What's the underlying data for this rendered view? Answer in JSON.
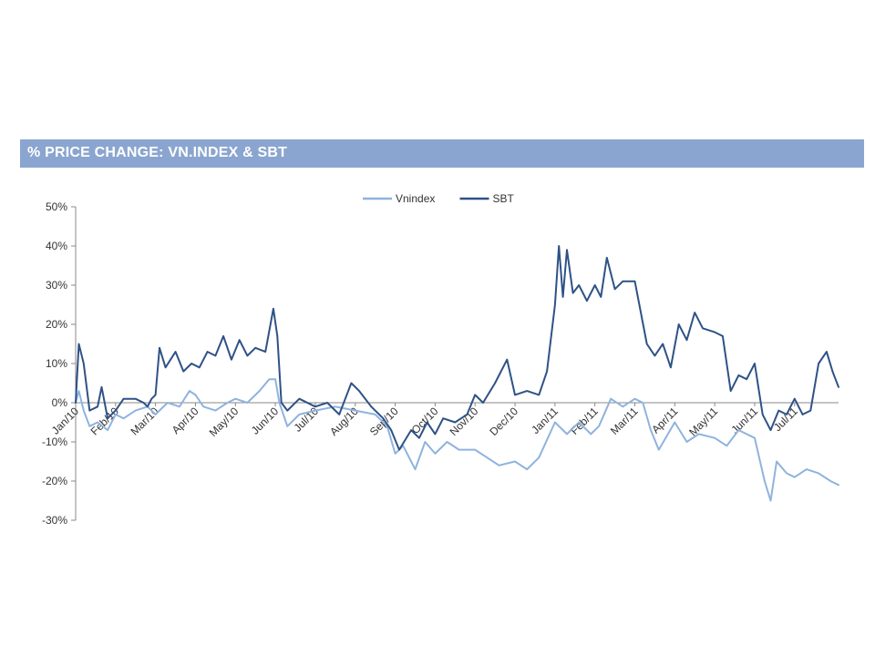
{
  "chart_data": {
    "type": "line",
    "title": "% PRICE CHANGE: VN.INDEX  & SBT",
    "xlabel": "",
    "ylabel": "",
    "ylim": [
      -30,
      50
    ],
    "y_ticks": [
      -30,
      -20,
      -10,
      0,
      10,
      20,
      30,
      40,
      50
    ],
    "y_tick_labels": [
      "-30%",
      "-20%",
      "-10%",
      "0%",
      "10%",
      "20%",
      "30%",
      "40%",
      "50%"
    ],
    "x_tick_labels": [
      "Jan/10",
      "Feb/10",
      "Mar/10",
      "Apr/10",
      "May/10",
      "Jun/10",
      "Jul/10",
      "Aug/10",
      "Sep/10",
      "Oct/10",
      "Nov/10",
      "Dec/10",
      "Jan/11",
      "Feb/11",
      "Mar/11",
      "Apr/11",
      "May/11",
      "Jun/11",
      "Jul/11"
    ],
    "x_range": [
      0,
      19.1
    ],
    "grid": false,
    "legend_position": "top-center",
    "series": [
      {
        "name": "Vnindex",
        "color": "#8fb3de",
        "points": [
          [
            0.0,
            0
          ],
          [
            0.08,
            3
          ],
          [
            0.2,
            -2
          ],
          [
            0.35,
            -6
          ],
          [
            0.55,
            -5
          ],
          [
            0.8,
            -7
          ],
          [
            1.0,
            -3
          ],
          [
            1.2,
            -4
          ],
          [
            1.5,
            -2
          ],
          [
            1.8,
            -1
          ],
          [
            2.0,
            -3
          ],
          [
            2.3,
            0
          ],
          [
            2.6,
            -1
          ],
          [
            2.85,
            3
          ],
          [
            3.0,
            2
          ],
          [
            3.2,
            -1
          ],
          [
            3.5,
            -2
          ],
          [
            3.8,
            0
          ],
          [
            4.0,
            1
          ],
          [
            4.3,
            0
          ],
          [
            4.6,
            3
          ],
          [
            4.85,
            6
          ],
          [
            5.0,
            6
          ],
          [
            5.1,
            0
          ],
          [
            5.3,
            -6
          ],
          [
            5.6,
            -3
          ],
          [
            6.0,
            -2
          ],
          [
            6.5,
            -1
          ],
          [
            7.0,
            -2
          ],
          [
            7.5,
            -3
          ],
          [
            7.8,
            -6
          ],
          [
            8.0,
            -13
          ],
          [
            8.2,
            -11
          ],
          [
            8.5,
            -17
          ],
          [
            8.75,
            -10
          ],
          [
            9.0,
            -13
          ],
          [
            9.3,
            -10
          ],
          [
            9.6,
            -12
          ],
          [
            10.0,
            -12
          ],
          [
            10.3,
            -14
          ],
          [
            10.6,
            -16
          ],
          [
            11.0,
            -15
          ],
          [
            11.3,
            -17
          ],
          [
            11.6,
            -14
          ],
          [
            12.0,
            -5
          ],
          [
            12.3,
            -8
          ],
          [
            12.6,
            -5
          ],
          [
            12.9,
            -8
          ],
          [
            13.1,
            -6
          ],
          [
            13.4,
            1
          ],
          [
            13.7,
            -1
          ],
          [
            14.0,
            1
          ],
          [
            14.2,
            0
          ],
          [
            14.4,
            -7
          ],
          [
            14.6,
            -12
          ],
          [
            15.0,
            -5
          ],
          [
            15.3,
            -10
          ],
          [
            15.6,
            -8
          ],
          [
            16.0,
            -9
          ],
          [
            16.3,
            -11
          ],
          [
            16.6,
            -7
          ],
          [
            17.0,
            -9
          ],
          [
            17.25,
            -20
          ],
          [
            17.4,
            -25
          ],
          [
            17.55,
            -15
          ],
          [
            17.8,
            -18
          ],
          [
            18.0,
            -19
          ],
          [
            18.3,
            -17
          ],
          [
            18.6,
            -18
          ],
          [
            18.9,
            -20
          ],
          [
            19.1,
            -21
          ]
        ]
      },
      {
        "name": "SBT",
        "color": "#2e5286",
        "points": [
          [
            0.0,
            0
          ],
          [
            0.08,
            15
          ],
          [
            0.2,
            10
          ],
          [
            0.35,
            -2
          ],
          [
            0.55,
            -1
          ],
          [
            0.65,
            4
          ],
          [
            0.8,
            -4
          ],
          [
            1.0,
            -2
          ],
          [
            1.2,
            1
          ],
          [
            1.5,
            1
          ],
          [
            1.7,
            0
          ],
          [
            1.8,
            -1
          ],
          [
            1.9,
            1
          ],
          [
            2.0,
            2
          ],
          [
            2.1,
            14
          ],
          [
            2.25,
            9
          ],
          [
            2.5,
            13
          ],
          [
            2.7,
            8
          ],
          [
            2.9,
            10
          ],
          [
            3.1,
            9
          ],
          [
            3.3,
            13
          ],
          [
            3.5,
            12
          ],
          [
            3.7,
            17
          ],
          [
            3.9,
            11
          ],
          [
            4.1,
            16
          ],
          [
            4.3,
            12
          ],
          [
            4.5,
            14
          ],
          [
            4.75,
            13
          ],
          [
            4.95,
            24
          ],
          [
            5.05,
            17
          ],
          [
            5.15,
            0
          ],
          [
            5.3,
            -2
          ],
          [
            5.6,
            1
          ],
          [
            6.0,
            -1
          ],
          [
            6.3,
            0
          ],
          [
            6.6,
            -3
          ],
          [
            6.9,
            5
          ],
          [
            7.1,
            3
          ],
          [
            7.4,
            -1
          ],
          [
            7.7,
            -4
          ],
          [
            7.9,
            -7
          ],
          [
            8.1,
            -12
          ],
          [
            8.4,
            -7
          ],
          [
            8.6,
            -9
          ],
          [
            8.8,
            -5
          ],
          [
            9.0,
            -8
          ],
          [
            9.2,
            -4
          ],
          [
            9.5,
            -5
          ],
          [
            9.8,
            -3
          ],
          [
            10.0,
            2
          ],
          [
            10.2,
            0
          ],
          [
            10.5,
            5
          ],
          [
            10.8,
            11
          ],
          [
            11.0,
            2
          ],
          [
            11.3,
            3
          ],
          [
            11.6,
            2
          ],
          [
            11.8,
            8
          ],
          [
            12.0,
            25
          ],
          [
            12.1,
            40
          ],
          [
            12.2,
            27
          ],
          [
            12.3,
            39
          ],
          [
            12.45,
            28
          ],
          [
            12.6,
            30
          ],
          [
            12.8,
            26
          ],
          [
            13.0,
            30
          ],
          [
            13.15,
            27
          ],
          [
            13.3,
            37
          ],
          [
            13.5,
            29
          ],
          [
            13.7,
            31
          ],
          [
            14.0,
            31
          ],
          [
            14.3,
            15
          ],
          [
            14.5,
            12
          ],
          [
            14.7,
            15
          ],
          [
            14.9,
            9
          ],
          [
            15.1,
            20
          ],
          [
            15.3,
            16
          ],
          [
            15.5,
            23
          ],
          [
            15.7,
            19
          ],
          [
            16.0,
            18
          ],
          [
            16.2,
            17
          ],
          [
            16.4,
            3
          ],
          [
            16.6,
            7
          ],
          [
            16.8,
            6
          ],
          [
            17.0,
            10
          ],
          [
            17.2,
            -3
          ],
          [
            17.4,
            -7
          ],
          [
            17.6,
            -2
          ],
          [
            17.8,
            -3
          ],
          [
            18.0,
            1
          ],
          [
            18.2,
            -3
          ],
          [
            18.4,
            -2
          ],
          [
            18.6,
            10
          ],
          [
            18.8,
            13
          ],
          [
            18.95,
            8
          ],
          [
            19.1,
            4
          ]
        ]
      }
    ]
  }
}
